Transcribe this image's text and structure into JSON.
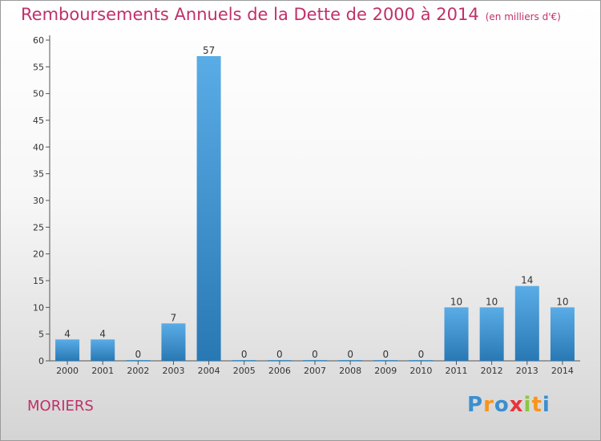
{
  "title": "Remboursements Annuels de la Dette de 2000 à 2014",
  "unit": "(en milliers d'€)",
  "commune": "MORIERS",
  "logo": {
    "text": "Proxiti",
    "letters": [
      "P",
      "r",
      "o",
      "x",
      "i",
      "t",
      "i"
    ],
    "colors": [
      "#3a8fd0",
      "#f7941d",
      "#3a8fd0",
      "#e8333a",
      "#8cc63f",
      "#f7941d",
      "#3a8fd0"
    ]
  },
  "chart_data": {
    "type": "bar",
    "categories": [
      "2000",
      "2001",
      "2002",
      "2003",
      "2004",
      "2005",
      "2006",
      "2007",
      "2008",
      "2009",
      "2010",
      "2011",
      "2012",
      "2013",
      "2014"
    ],
    "values": [
      4,
      4,
      0,
      7,
      57,
      0,
      0,
      0,
      0,
      0,
      0,
      10,
      10,
      14,
      10
    ],
    "ylim": [
      0,
      60
    ],
    "yticks": [
      0,
      5,
      10,
      15,
      20,
      25,
      30,
      35,
      40,
      45,
      50,
      55,
      60
    ],
    "grid": false,
    "bar_color_top": "#5aace6",
    "bar_color_bottom": "#2878b4"
  }
}
